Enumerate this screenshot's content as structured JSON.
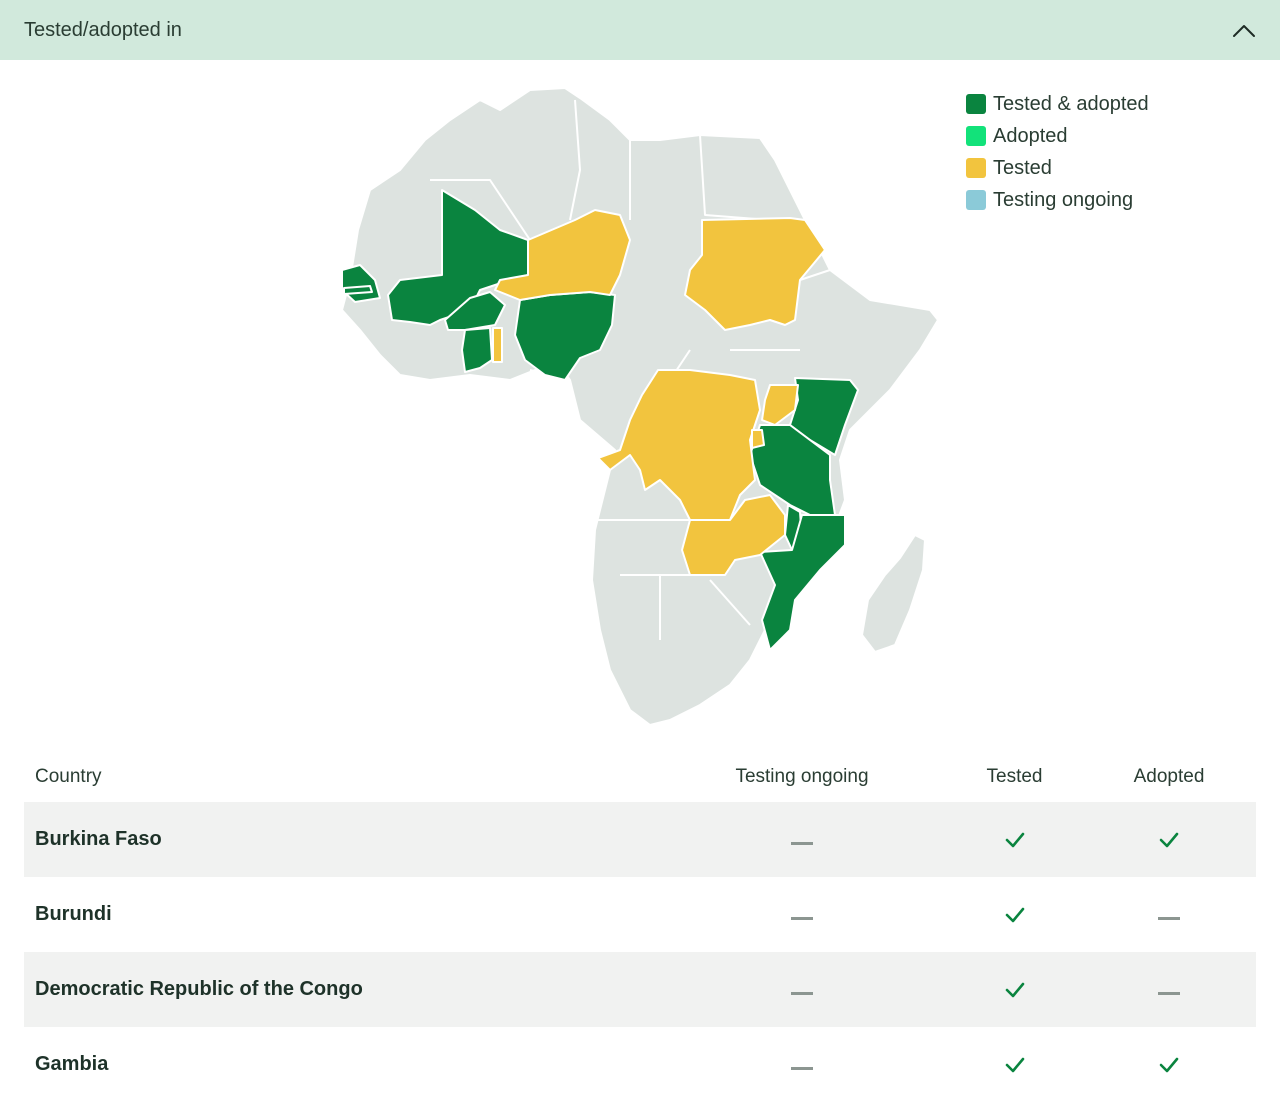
{
  "accordion": {
    "title": "Tested/adopted in",
    "expanded": true,
    "toggle_icon": "chevron-up-icon"
  },
  "colors": {
    "tested_adopted": "#0a843f",
    "adopted": "#12e27a",
    "tested": "#f2c43e",
    "testing_ongoing": "#8bcad8",
    "not_listed": "#dde3e0"
  },
  "legend": [
    {
      "label": "Tested & adopted",
      "color": "#0a843f"
    },
    {
      "label": "Adopted",
      "color": "#12e27a"
    },
    {
      "label": "Tested",
      "color": "#f2c43e"
    },
    {
      "label": "Testing ongoing",
      "color": "#8bcad8"
    }
  ],
  "table": {
    "headers": {
      "country": "Country",
      "testing_ongoing": "Testing ongoing",
      "tested": "Tested",
      "adopted": "Adopted"
    },
    "rows": [
      {
        "country": "Burkina Faso",
        "testing_ongoing": false,
        "tested": true,
        "adopted": true
      },
      {
        "country": "Burundi",
        "testing_ongoing": false,
        "tested": true,
        "adopted": false
      },
      {
        "country": "Democratic Republic of the Congo",
        "testing_ongoing": false,
        "tested": true,
        "adopted": false
      },
      {
        "country": "Gambia",
        "testing_ongoing": false,
        "tested": true,
        "adopted": true
      }
    ]
  }
}
